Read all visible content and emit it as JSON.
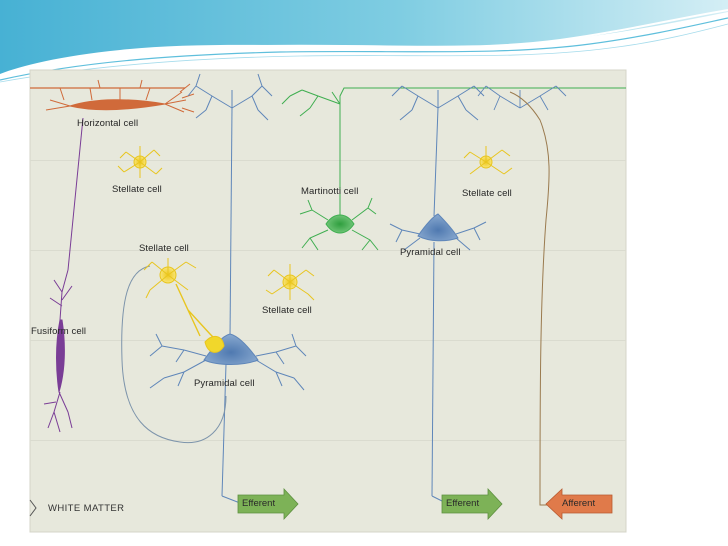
{
  "diagram": {
    "cells": {
      "horizontal": "Horizontal cell",
      "stellate_left_top": "Stellate cell",
      "stellate_left_mid": "Stellate cell",
      "stellate_center": "Stellate cell",
      "stellate_right": "Stellate cell",
      "martinotti": "Martinotti cell",
      "pyramidal_right": "Pyramidal cell",
      "pyramidal_left": "Pyramidal cell",
      "fusiform": "Fusiform cell"
    },
    "white_matter": "WHITE MATTER",
    "arrows": {
      "efferent_left": "Efferent",
      "efferent_right": "Efferent",
      "afferent": "Afferent"
    },
    "colors": {
      "panel_bg": "#e7e8dc",
      "blue_neuron": "#5f86b9",
      "green_neuron": "#3fae50",
      "yellow_stellate": "#f1d72b",
      "orange_horizontal": "#d06a3a",
      "purple_fusiform": "#7a3d96",
      "efferent_arrow": "#7db257",
      "afferent_arrow": "#e07a4a"
    }
  }
}
